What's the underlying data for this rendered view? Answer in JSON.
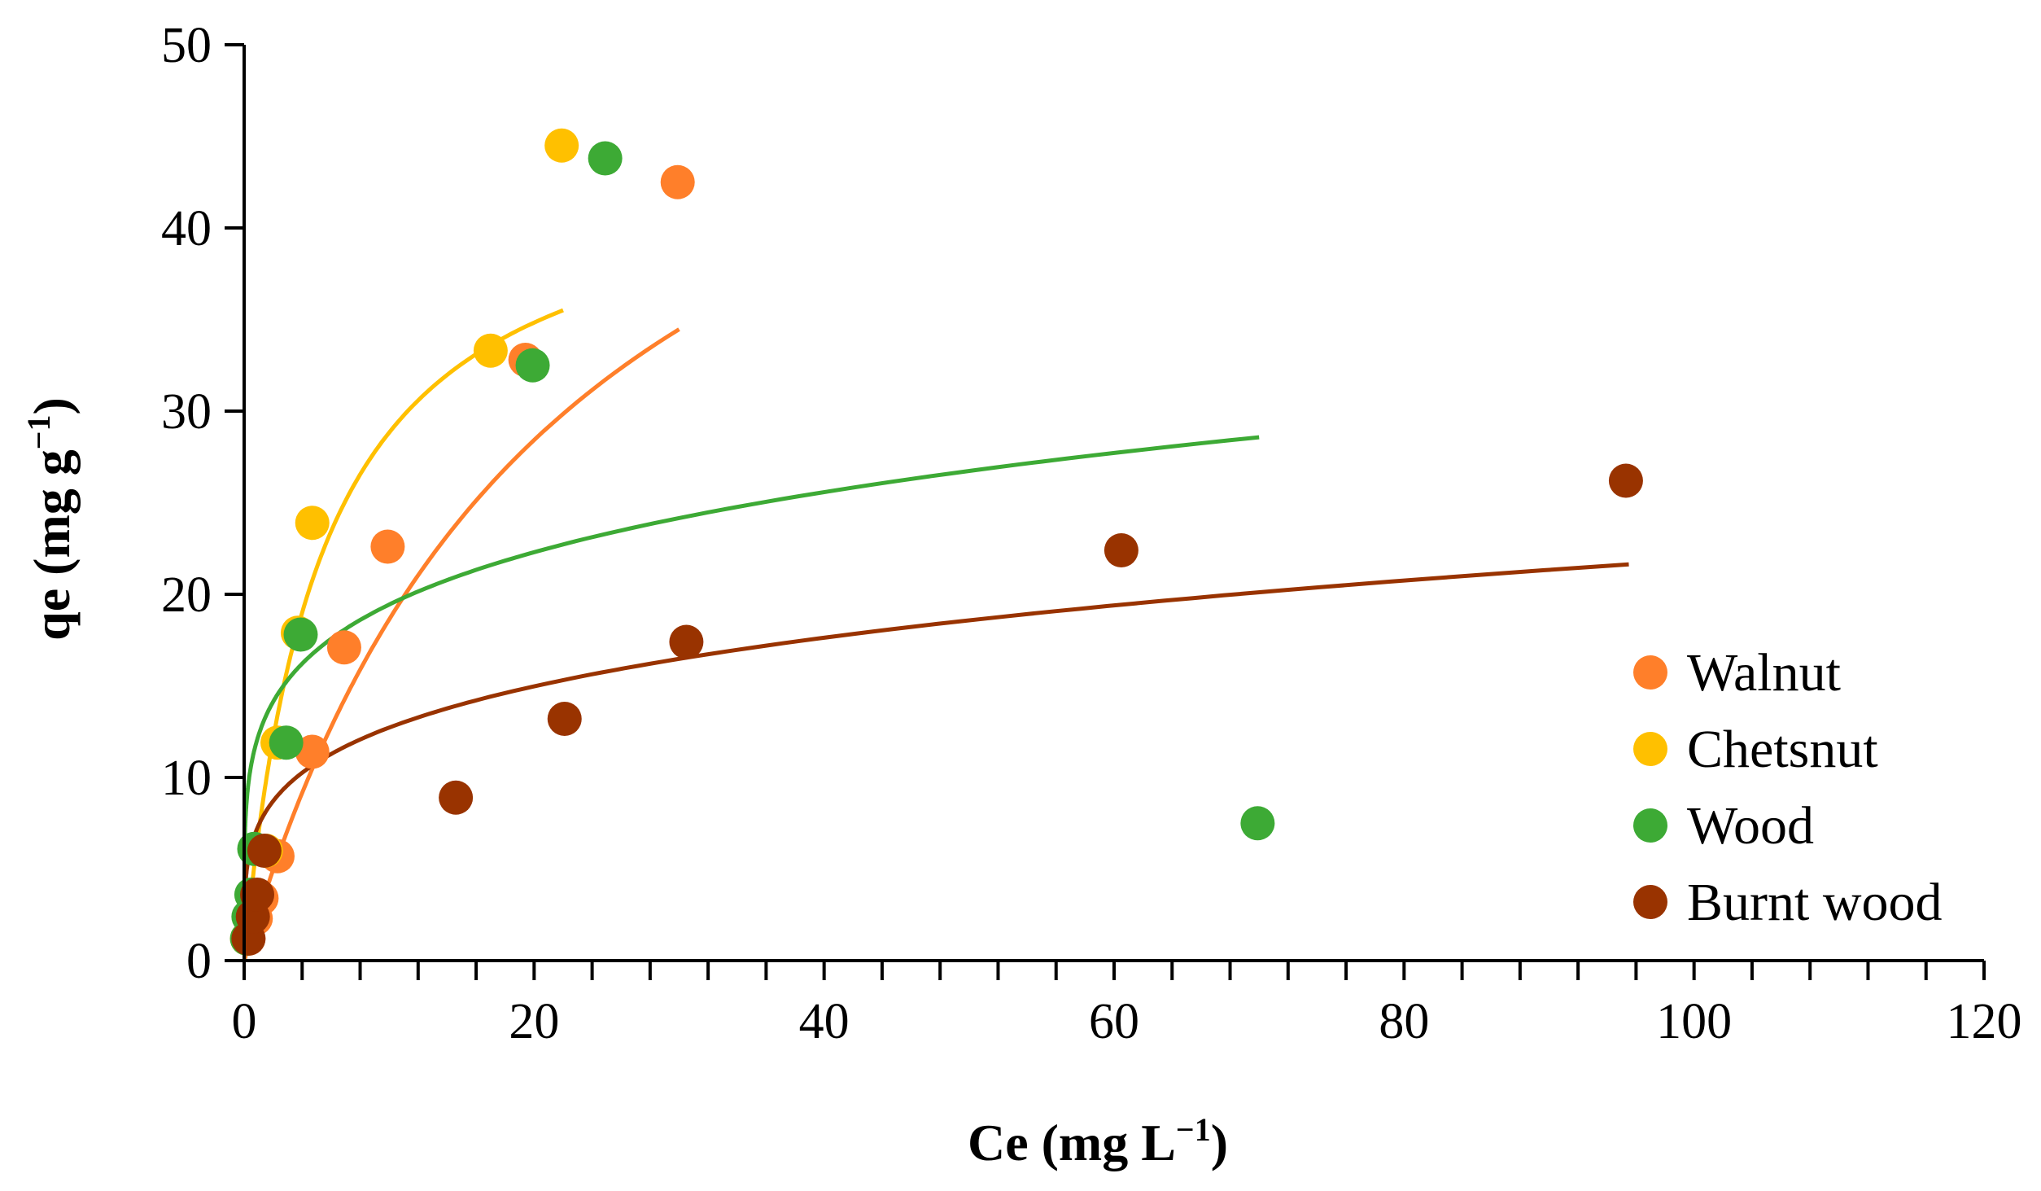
{
  "chart_data": {
    "type": "scatter",
    "title": "",
    "xlabel": "Ce (mg L",
    "xlabel_sup": "−1",
    "xlabel_end": ")",
    "ylabel": "qe (mg g",
    "ylabel_sup": "−1",
    "ylabel_end": ")",
    "xlim": [
      0,
      120
    ],
    "ylim": [
      0,
      50
    ],
    "x_ticks": [
      0,
      20,
      40,
      60,
      80,
      100,
      120
    ],
    "y_ticks": [
      0,
      10,
      20,
      30,
      40,
      50
    ],
    "x_minor_step": 4,
    "grid": false,
    "legend_position": "right-bottom",
    "series": [
      {
        "name": "Walnut",
        "color": "#FF7F2A",
        "points": [
          [
            0.3,
            1.2
          ],
          [
            0.8,
            2.3
          ],
          [
            1.2,
            3.4
          ],
          [
            2.3,
            5.7
          ],
          [
            4.7,
            11.4
          ],
          [
            6.9,
            17.1
          ],
          [
            9.9,
            22.6
          ],
          [
            19.4,
            32.8
          ],
          [
            29.9,
            42.5
          ]
        ],
        "fit": {
          "model": "langmuir",
          "qmax": 60,
          "KL": 0.045,
          "x_range": [
            0.05,
            30
          ]
        }
      },
      {
        "name": "Chetsnut",
        "color": "#FFC000",
        "points": [
          [
            0.2,
            1.2
          ],
          [
            0.4,
            2.3
          ],
          [
            0.6,
            3.5
          ],
          [
            1.5,
            6.0
          ],
          [
            2.3,
            11.9
          ],
          [
            3.7,
            17.9
          ],
          [
            4.7,
            23.9
          ],
          [
            17.0,
            33.3
          ],
          [
            21.9,
            44.5
          ]
        ],
        "fit": {
          "model": "langmuir",
          "qmax": 44,
          "KL": 0.19,
          "x_range": [
            0.05,
            22
          ]
        }
      },
      {
        "name": "Wood",
        "color": "#3DAA35",
        "points": [
          [
            0.2,
            1.2
          ],
          [
            0.3,
            2.4
          ],
          [
            0.5,
            3.6
          ],
          [
            0.7,
            6.1
          ],
          [
            2.9,
            11.9
          ],
          [
            3.9,
            17.8
          ],
          [
            19.9,
            32.5
          ],
          [
            24.9,
            43.8
          ],
          [
            69.9,
            7.5
          ]
        ],
        "fit": {
          "model": "freundlich",
          "KF": 12.32,
          "n": 5.05,
          "x_range": [
            0.05,
            70
          ]
        }
      },
      {
        "name": "Burnt wood",
        "color": "#993300",
        "points": [
          [
            0.3,
            1.2
          ],
          [
            0.6,
            2.4
          ],
          [
            0.9,
            3.6
          ],
          [
            1.4,
            6.0
          ],
          [
            14.6,
            8.9
          ],
          [
            22.1,
            13.2
          ],
          [
            30.5,
            17.4
          ],
          [
            60.5,
            22.4
          ],
          [
            95.3,
            26.2
          ]
        ],
        "fit": {
          "model": "freundlich",
          "KF": 7.4,
          "n": 4.25,
          "x_range": [
            0.05,
            95.5
          ]
        }
      }
    ]
  }
}
